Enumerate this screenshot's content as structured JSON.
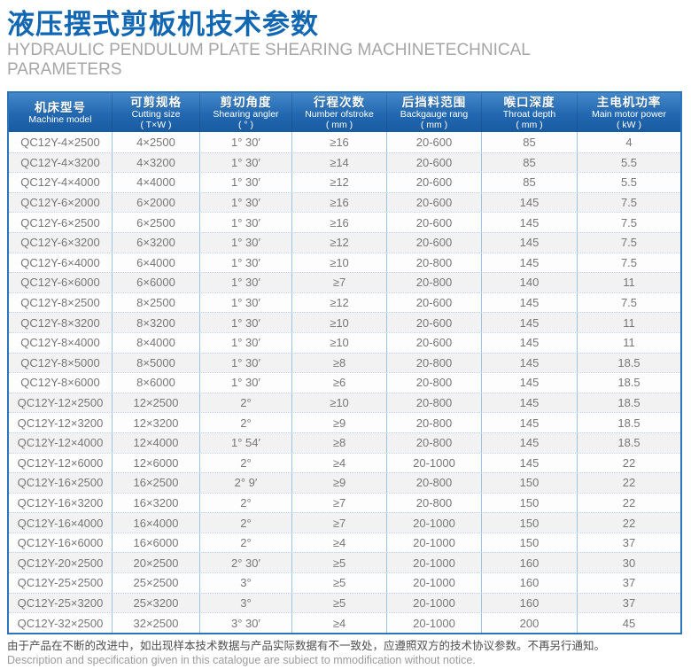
{
  "page": {
    "title_cn": "液压摆式剪板机技术参数",
    "subtitle_line1": "HYDRAULIC PENDULUM PLATE SHEARING MACHINETECHNICAL",
    "subtitle_line2": "PARAMETERS"
  },
  "colors": {
    "accent_blue": "#1267b3",
    "header_gradient_top": "#4488c9",
    "header_gradient_bottom": "#195ba3",
    "table_border": "#2d74b9",
    "column_separator": "#9dc2e5",
    "row_dotted_separator": "#b7d3ee",
    "alt_row_background": "#f2f2f2",
    "body_text": "#777777",
    "subtitle_gray": "#a6a6a6"
  },
  "table": {
    "column_keys": [
      "model",
      "cutting-size",
      "shearing-angle",
      "stroke-number",
      "backgauge-range",
      "throat-depth",
      "motor-power"
    ],
    "columns": [
      {
        "cn": "机床型号",
        "en": "Machine model",
        "unit": ""
      },
      {
        "cn": "可剪规格",
        "en": "Cutting size",
        "unit": "( T×W )"
      },
      {
        "cn": "剪切角度",
        "en": "Shearing angler",
        "unit": "( ° )"
      },
      {
        "cn": "行程次数",
        "en": "Number ofstroke",
        "unit": "( mm )"
      },
      {
        "cn": "后挡料范围",
        "en": "Backgauge rang",
        "unit": "( mm )"
      },
      {
        "cn": "喉口深度",
        "en": "Throat depth",
        "unit": "( mm )"
      },
      {
        "cn": "主电机功率",
        "en": "Main motor power",
        "unit": "( kW )"
      }
    ],
    "rows": [
      [
        "QC12Y-4×2500",
        "4×2500",
        "1° 30′",
        "≥16",
        "20-600",
        "85",
        "4"
      ],
      [
        "QC12Y-4×3200",
        "4×3200",
        "1° 30′",
        "≥14",
        "20-600",
        "85",
        "5.5"
      ],
      [
        "QC12Y-4×4000",
        "4×4000",
        "1° 30′",
        "≥12",
        "20-600",
        "85",
        "5.5"
      ],
      [
        "QC12Y-6×2000",
        "6×2000",
        "1° 30′",
        "≥16",
        "20-600",
        "145",
        "7.5"
      ],
      [
        "QC12Y-6×2500",
        "6×2500",
        "1° 30′",
        "≥16",
        "20-600",
        "145",
        "7.5"
      ],
      [
        "QC12Y-6×3200",
        "6×3200",
        "1° 30′",
        "≥12",
        "20-600",
        "145",
        "7.5"
      ],
      [
        "QC12Y-6×4000",
        "6×4000",
        "1° 30′",
        "≥10",
        "20-800",
        "145",
        "7.5"
      ],
      [
        "QC12Y-6×6000",
        "6×6000",
        "1° 30′",
        "≥7",
        "20-800",
        "140",
        "11"
      ],
      [
        "QC12Y-8×2500",
        "8×2500",
        "1° 30′",
        "≥12",
        "20-600",
        "145",
        "7.5"
      ],
      [
        "QC12Y-8×3200",
        "8×3200",
        "1° 30′",
        "≥10",
        "20-600",
        "145",
        "11"
      ],
      [
        "QC12Y-8×4000",
        "8×4000",
        "1° 30′",
        "≥10",
        "20-600",
        "145",
        "11"
      ],
      [
        "QC12Y-8×5000",
        "8×5000",
        "1° 30′",
        "≥8",
        "20-800",
        "145",
        "18.5"
      ],
      [
        "QC12Y-8×6000",
        "8×6000",
        "1° 30′",
        "≥6",
        "20-800",
        "145",
        "18.5"
      ],
      [
        "QC12Y-12×2500",
        "12×2500",
        "2°",
        "≥10",
        "20-800",
        "145",
        "18.5"
      ],
      [
        "QC12Y-12×3200",
        "12×3200",
        "2°",
        "≥9",
        "20-800",
        "145",
        "18.5"
      ],
      [
        "QC12Y-12×4000",
        "12×4000",
        "1° 54′",
        "≥8",
        "20-800",
        "145",
        "18.5"
      ],
      [
        "QC12Y-12×6000",
        "12×6000",
        "2°",
        "≥4",
        "20-1000",
        "145",
        "22"
      ],
      [
        "QC12Y-16×2500",
        "16×2500",
        "2° 9′",
        "≥9",
        "20-800",
        "150",
        "22"
      ],
      [
        "QC12Y-16×3200",
        "16×3200",
        "2°",
        "≥7",
        "20-800",
        "150",
        "22"
      ],
      [
        "QC12Y-16×4000",
        "16×4000",
        "2°",
        "≥7",
        "20-1000",
        "150",
        "22"
      ],
      [
        "QC12Y-16×6000",
        "16×6000",
        "2°",
        "≥4",
        "20-1000",
        "150",
        "37"
      ],
      [
        "QC12Y-20×2500",
        "20×2500",
        "2° 30′",
        "≥5",
        "20-1000",
        "160",
        "30"
      ],
      [
        "QC12Y-25×2500",
        "25×2500",
        "3°",
        "≥5",
        "20-1000",
        "160",
        "37"
      ],
      [
        "QC12Y-25×3200",
        "25×3200",
        "3°",
        "≥5",
        "20-1000",
        "160",
        "37"
      ],
      [
        "QC12Y-32×2500",
        "32×2500",
        "3° 30′",
        "≥4",
        "20-1000",
        "200",
        "45"
      ]
    ]
  },
  "footer": {
    "note_cn": "由于产品在不断的改进中，如出现样本技术数据与产品实际数据有不一致处，应遵照双方的技术协议参数。不再另行通知。",
    "note_en": "Description and specification given in this catalogue are subiect to mmodification without notice."
  }
}
